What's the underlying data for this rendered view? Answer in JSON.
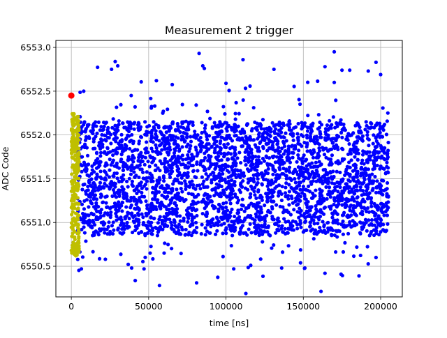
{
  "chart_data": {
    "type": "scatter",
    "title": "Measurement 2 trigger",
    "xlabel": "time [ns]",
    "ylabel": "ADC Code",
    "xlim": [
      -10000,
      214000
    ],
    "ylim": [
      6550.15,
      6553.08
    ],
    "x_ticks": [
      0,
      50000,
      100000,
      150000,
      200000
    ],
    "x_tick_labels": [
      "0",
      "50000",
      "100000",
      "150000",
      "200000"
    ],
    "y_ticks": [
      6550.5,
      6551.0,
      6551.5,
      6552.0,
      6552.5,
      6553.0
    ],
    "y_tick_labels": [
      "6550.5",
      "6551.0",
      "6551.5",
      "6552.0",
      "6552.5",
      "6553.0"
    ],
    "grid": true,
    "legend": "none",
    "series": [
      {
        "color": "#0000ff",
        "description": "dense cloud, x from ~4000 to ~205000, y mostly 6550.7–6552.3",
        "x_range": [
          4000,
          205000
        ],
        "y_core": [
          6550.85,
          6552.15
        ],
        "outliers": [
          {
            "x": 30000,
            "y": 6552.79
          },
          {
            "x": 26000,
            "y": 6552.75
          },
          {
            "x": 85000,
            "y": 6552.79
          },
          {
            "x": 86000,
            "y": 6552.76
          },
          {
            "x": 111000,
            "y": 6552.86
          },
          {
            "x": 131000,
            "y": 6552.75
          },
          {
            "x": 170000,
            "y": 6552.95
          },
          {
            "x": 164000,
            "y": 6552.78
          },
          {
            "x": 197000,
            "y": 6552.83
          },
          {
            "x": 175000,
            "y": 6552.74
          },
          {
            "x": 180000,
            "y": 6552.74
          },
          {
            "x": 192000,
            "y": 6552.73
          },
          {
            "x": 200000,
            "y": 6552.69
          },
          {
            "x": 170000,
            "y": 6552.6
          },
          {
            "x": 8000,
            "y": 6552.5
          },
          {
            "x": 55000,
            "y": 6552.62
          },
          {
            "x": 100000,
            "y": 6552.59
          },
          {
            "x": 39000,
            "y": 6550.48
          },
          {
            "x": 47000,
            "y": 6550.47
          },
          {
            "x": 57000,
            "y": 6550.28
          },
          {
            "x": 81000,
            "y": 6550.31
          },
          {
            "x": 136000,
            "y": 6550.48
          },
          {
            "x": 164000,
            "y": 6550.42
          },
          {
            "x": 186000,
            "y": 6550.39
          },
          {
            "x": 105000,
            "y": 6550.47
          },
          {
            "x": 116000,
            "y": 6550.51
          },
          {
            "x": 60000,
            "y": 6550.65
          },
          {
            "x": 22000,
            "y": 6550.58
          },
          {
            "x": 151000,
            "y": 6550.48
          },
          {
            "x": 197000,
            "y": 6550.6
          }
        ]
      },
      {
        "color": "#bfbf00",
        "description": "narrow column, x from ~0 to ~5000",
        "x_range": [
          0,
          5000
        ],
        "y_core": [
          6550.6,
          6552.25
        ]
      },
      {
        "color": "#ff0000",
        "points": [
          {
            "x": 0,
            "y": 6552.45
          }
        ]
      }
    ]
  }
}
